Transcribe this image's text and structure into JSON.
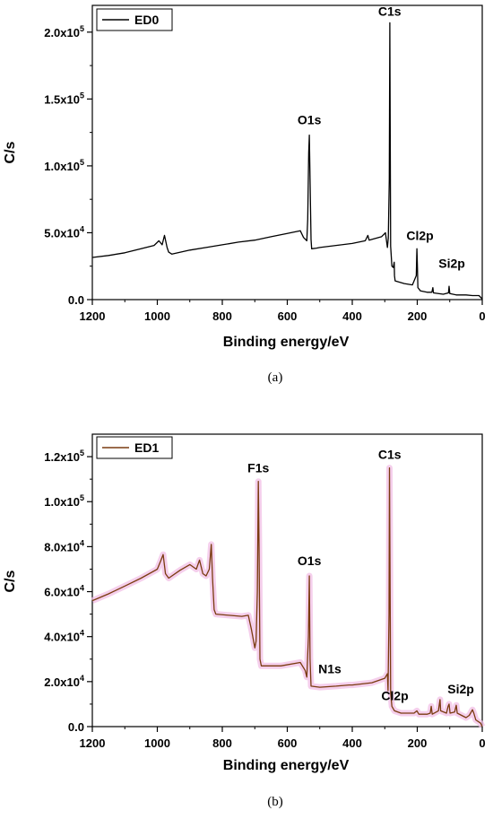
{
  "chart_data": [
    {
      "type": "line",
      "panel_label": "(a)",
      "xlabel": "Binding energy/eV",
      "ylabel": "C/s",
      "xlim": [
        1200,
        0
      ],
      "ylim": [
        0,
        220000
      ],
      "x_ticks": [
        1200,
        1000,
        800,
        600,
        400,
        200,
        0
      ],
      "x_tick_labels": [
        "1200",
        "1000",
        "800",
        "600",
        "400",
        "200",
        "0"
      ],
      "y_ticks": [
        0,
        50000,
        100000,
        150000,
        200000
      ],
      "y_tick_labels": [
        {
          "base": "0.0",
          "exp": ""
        },
        {
          "base": "5.0x10",
          "exp": "4"
        },
        {
          "base": "1.0x10",
          "exp": "5"
        },
        {
          "base": "1.5x10",
          "exp": "5"
        },
        {
          "base": "2.0x10",
          "exp": "5"
        }
      ],
      "legend": {
        "entries": [
          "ED0"
        ],
        "position": "top-left"
      },
      "series": [
        {
          "name": "ED0",
          "color": "#000000",
          "points": [
            [
              1200,
              31500
            ],
            [
              1150,
              33000
            ],
            [
              1100,
              35000
            ],
            [
              1050,
              38000
            ],
            [
              1010,
              40500
            ],
            [
              995,
              44000
            ],
            [
              985,
              41000
            ],
            [
              978,
              48000
            ],
            [
              970,
              39000
            ],
            [
              965,
              35500
            ],
            [
              955,
              34000
            ],
            [
              900,
              37000
            ],
            [
              850,
              39000
            ],
            [
              800,
              41000
            ],
            [
              750,
              43000
            ],
            [
              700,
              44500
            ],
            [
              650,
              47000
            ],
            [
              600,
              49500
            ],
            [
              560,
              51500
            ],
            [
              550,
              46500
            ],
            [
              540,
              44000
            ],
            [
              537,
              60000
            ],
            [
              534,
              110000
            ],
            [
              532,
              123000
            ],
            [
              530,
              90000
            ],
            [
              527,
              45000
            ],
            [
              525,
              38000
            ],
            [
              510,
              38500
            ],
            [
              500,
              39000
            ],
            [
              450,
              40500
            ],
            [
              400,
              42000
            ],
            [
              360,
              44000
            ],
            [
              352,
              48000
            ],
            [
              348,
              44500
            ],
            [
              340,
              45000
            ],
            [
              310,
              47000
            ],
            [
              298,
              50000
            ],
            [
              292,
              39000
            ],
            [
              289,
              46000
            ],
            [
              286,
              90000
            ],
            [
              284.5,
              207000
            ],
            [
              283.5,
              150000
            ],
            [
              282,
              40000
            ],
            [
              278,
              25000
            ],
            [
              274,
              24000
            ],
            [
              271,
              28000
            ],
            [
              270,
              18000
            ],
            [
              268,
              14000
            ],
            [
              240,
              12000
            ],
            [
              215,
              11000
            ],
            [
              203,
              18000
            ],
            [
              201,
              38000
            ],
            [
              199.5,
              24000
            ],
            [
              198,
              9000
            ],
            [
              190,
              6500
            ],
            [
              170,
              5500
            ],
            [
              155,
              5500
            ],
            [
              152,
              9000
            ],
            [
              150,
              5000
            ],
            [
              120,
              4000
            ],
            [
              104,
              5000
            ],
            [
              102,
              10000
            ],
            [
              100,
              4500
            ],
            [
              80,
              3500
            ],
            [
              50,
              3500
            ],
            [
              30,
              3000
            ],
            [
              10,
              3000
            ],
            [
              0,
              500
            ]
          ]
        }
      ],
      "annotations": [
        {
          "text": "C1s",
          "x": 285,
          "y": 207000
        },
        {
          "text": "O1s",
          "x": 532,
          "y": 123000
        },
        {
          "text": "Cl2p",
          "x": 200,
          "y": 38000
        },
        {
          "text": "Si2p",
          "x": 102,
          "y": 17000
        }
      ]
    },
    {
      "type": "line",
      "panel_label": "(b)",
      "xlabel": "Binding energy/eV",
      "ylabel": "C/s",
      "xlim": [
        1200,
        0
      ],
      "ylim": [
        0,
        130000
      ],
      "x_ticks": [
        1200,
        1000,
        800,
        600,
        400,
        200,
        0
      ],
      "x_tick_labels": [
        "1200",
        "1000",
        "800",
        "600",
        "400",
        "200",
        "0"
      ],
      "y_ticks": [
        0,
        20000,
        40000,
        60000,
        80000,
        100000,
        120000
      ],
      "y_tick_labels": [
        {
          "base": "0.0",
          "exp": ""
        },
        {
          "base": "2.0x10",
          "exp": "4"
        },
        {
          "base": "4.0x10",
          "exp": "4"
        },
        {
          "base": "6.0x10",
          "exp": "4"
        },
        {
          "base": "8.0x10",
          "exp": "4"
        },
        {
          "base": "1.0x10",
          "exp": "5"
        },
        {
          "base": "1.2x10",
          "exp": "5"
        }
      ],
      "legend": {
        "entries": [
          "ED1"
        ],
        "position": "top-left"
      },
      "series": [
        {
          "name": "ED1",
          "color": "#7a3b10",
          "band_color": "#f2bfe6",
          "points": [
            [
              1200,
              56000
            ],
            [
              1150,
              59000
            ],
            [
              1100,
              62500
            ],
            [
              1050,
              66000
            ],
            [
              1000,
              70000
            ],
            [
              990,
              73500
            ],
            [
              982,
              76500
            ],
            [
              975,
              68000
            ],
            [
              965,
              66000
            ],
            [
              930,
              69500
            ],
            [
              900,
              72000
            ],
            [
              880,
              70000
            ],
            [
              870,
              74000
            ],
            [
              860,
              68000
            ],
            [
              850,
              67000
            ],
            [
              840,
              70000
            ],
            [
              834,
              81000
            ],
            [
              830,
              66000
            ],
            [
              825,
              52000
            ],
            [
              820,
              50000
            ],
            [
              780,
              49500
            ],
            [
              740,
              49000
            ],
            [
              720,
              49500
            ],
            [
              710,
              43000
            ],
            [
              700,
              35000
            ],
            [
              696,
              38000
            ],
            [
              692,
              60000
            ],
            [
              689,
              109000
            ],
            [
              687,
              80000
            ],
            [
              684,
              30000
            ],
            [
              680,
              27000
            ],
            [
              620,
              27000
            ],
            [
              560,
              28500
            ],
            [
              545,
              25000
            ],
            [
              540,
              22000
            ],
            [
              535,
              40000
            ],
            [
              532,
              67000
            ],
            [
              530,
              30000
            ],
            [
              527,
              18000
            ],
            [
              500,
              17500
            ],
            [
              450,
              18000
            ],
            [
              410,
              18500
            ],
            [
              400,
              18500
            ],
            [
              340,
              19500
            ],
            [
              300,
              21500
            ],
            [
              292,
              23500
            ],
            [
              290,
              16000
            ],
            [
              287,
              50000
            ],
            [
              285.5,
              115000
            ],
            [
              284,
              70000
            ],
            [
              282,
              15000
            ],
            [
              278,
              9000
            ],
            [
              270,
              7000
            ],
            [
              250,
              6000
            ],
            [
              210,
              6000
            ],
            [
              201,
              7000
            ],
            [
              195,
              5500
            ],
            [
              170,
              5500
            ],
            [
              160,
              6000
            ],
            [
              157,
              9000
            ],
            [
              154,
              5500
            ],
            [
              135,
              7000
            ],
            [
              130,
              12000
            ],
            [
              128,
              7000
            ],
            [
              110,
              6000
            ],
            [
              105,
              9000
            ],
            [
              102,
              10000
            ],
            [
              99,
              6000
            ],
            [
              85,
              6500
            ],
            [
              80,
              9500
            ],
            [
              77,
              6000
            ],
            [
              50,
              4000
            ],
            [
              40,
              5000
            ],
            [
              30,
              7500
            ],
            [
              26,
              6000
            ],
            [
              20,
              3000
            ],
            [
              5,
              1500
            ],
            [
              0,
              0
            ]
          ]
        }
      ],
      "annotations": [
        {
          "text": "F1s",
          "x": 689,
          "y": 109000
        },
        {
          "text": "C1s",
          "x": 285,
          "y": 115000
        },
        {
          "text": "O1s",
          "x": 532,
          "y": 67000
        },
        {
          "text": "N1s",
          "x": 400,
          "y": 19000
        },
        {
          "text": "Cl2p",
          "x": 200,
          "y": 7000
        },
        {
          "text": "Si2p",
          "x": 102,
          "y": 10000
        }
      ]
    }
  ]
}
